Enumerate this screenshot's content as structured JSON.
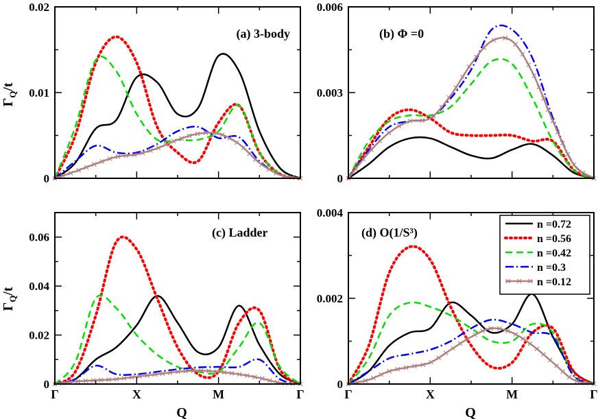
{
  "figure": {
    "xlabel": "Q",
    "ylabel": "Γ",
    "ylabel_sub": "Q",
    "ylabel_tail": "/t",
    "x_ticks": [
      "Γ",
      "X",
      "M",
      "Γ"
    ]
  },
  "legend": {
    "entries": [
      {
        "label": "n =0.72",
        "color": "#000000",
        "style": "solid",
        "marker": ""
      },
      {
        "label": "n =0.56",
        "color": "#ff0000",
        "style": "dotted",
        "marker": ""
      },
      {
        "label": "n =0.42",
        "color": "#00e000",
        "style": "dashed",
        "marker": ""
      },
      {
        "label": "n =0.3",
        "color": "#0000ff",
        "style": "dashdot",
        "marker": ""
      },
      {
        "label": "n =0.12",
        "color": "#b08080",
        "style": "solid",
        "marker": "x"
      }
    ]
  },
  "chart_data": [
    {
      "type": "line",
      "title": "(a) 3-body",
      "ylim": [
        0,
        0.02
      ],
      "y_ticks": [
        "0",
        "0.01",
        "0.02"
      ],
      "y_tick_values": [
        0,
        0.01,
        0.02
      ],
      "x": [
        0,
        0.25,
        0.5,
        0.75,
        1,
        1.25,
        1.5,
        1.75,
        2,
        2.25,
        2.5,
        2.75,
        3
      ],
      "series": [
        {
          "name": "n =0.72",
          "values": [
            0,
            0.0018,
            0.0058,
            0.0068,
            0.0118,
            0.0112,
            0.0075,
            0.0082,
            0.0143,
            0.0125,
            0.0055,
            0.0012,
            0
          ]
        },
        {
          "name": "n =0.56",
          "values": [
            0,
            0.005,
            0.0135,
            0.0165,
            0.0135,
            0.006,
            0.003,
            0.002,
            0.0065,
            0.0085,
            0.003,
            0.0005,
            0
          ]
        },
        {
          "name": "n =0.42",
          "values": [
            0,
            0.006,
            0.0138,
            0.0125,
            0.0075,
            0.0045,
            0.0045,
            0.0045,
            0.0055,
            0.0085,
            0.003,
            0.0005,
            0
          ]
        },
        {
          "name": "n =0.3",
          "values": [
            0,
            0.002,
            0.0038,
            0.003,
            0.003,
            0.004,
            0.0055,
            0.006,
            0.0047,
            0.0048,
            0.002,
            0.0004,
            0
          ]
        },
        {
          "name": "n =0.12",
          "values": [
            0,
            0.0008,
            0.0017,
            0.0025,
            0.0028,
            0.0035,
            0.0045,
            0.0052,
            0.0052,
            0.004,
            0.0018,
            0.0004,
            0
          ]
        }
      ]
    },
    {
      "type": "line",
      "title": "(b) Φ =0",
      "ylim": [
        0,
        0.006
      ],
      "y_ticks": [
        "0",
        "0.003",
        "0.006"
      ],
      "y_tick_values": [
        0,
        0.003,
        0.006
      ],
      "x": [
        0,
        0.25,
        0.5,
        0.75,
        1,
        1.25,
        1.5,
        1.75,
        2,
        2.25,
        2.5,
        2.75,
        3
      ],
      "series": [
        {
          "name": "n =0.72",
          "values": [
            0,
            0.0005,
            0.0011,
            0.0014,
            0.0014,
            0.0011,
            0.0008,
            0.0007,
            0.001,
            0.0012,
            0.0008,
            0.0002,
            0
          ]
        },
        {
          "name": "n =0.56",
          "values": [
            0,
            0.0011,
            0.0021,
            0.0024,
            0.0021,
            0.0016,
            0.0015,
            0.0015,
            0.0015,
            0.0013,
            0.0013,
            0.0003,
            0
          ]
        },
        {
          "name": "n =0.42",
          "values": [
            0,
            0.0013,
            0.002,
            0.0022,
            0.0022,
            0.0025,
            0.0033,
            0.0041,
            0.004,
            0.0028,
            0.0013,
            0.0003,
            0
          ]
        },
        {
          "name": "n =0.3",
          "values": [
            0,
            0.001,
            0.0018,
            0.002,
            0.0021,
            0.0028,
            0.0038,
            0.0052,
            0.0052,
            0.0042,
            0.0021,
            0.0005,
            0
          ]
        },
        {
          "name": "n =0.12",
          "values": [
            0,
            0.0009,
            0.0016,
            0.002,
            0.0021,
            0.0029,
            0.004,
            0.0048,
            0.0048,
            0.0037,
            0.002,
            0.0005,
            0
          ]
        }
      ]
    },
    {
      "type": "line",
      "title": "(c) Ladder",
      "ylim": [
        0,
        0.07
      ],
      "y_ticks": [
        "0",
        "0.02",
        "0.04",
        "0.06"
      ],
      "y_tick_values": [
        0,
        0.02,
        0.04,
        0.06
      ],
      "x": [
        0,
        0.25,
        0.5,
        0.75,
        1,
        1.25,
        1.5,
        1.75,
        2,
        2.25,
        2.5,
        2.75,
        3
      ],
      "series": [
        {
          "name": "n =0.72",
          "values": [
            0,
            0.002,
            0.01,
            0.015,
            0.024,
            0.036,
            0.025,
            0.013,
            0.015,
            0.032,
            0.016,
            0.004,
            0
          ]
        },
        {
          "name": "n =0.56",
          "values": [
            0,
            0.005,
            0.028,
            0.058,
            0.055,
            0.035,
            0.015,
            0.004,
            0.005,
            0.025,
            0.03,
            0.006,
            0
          ]
        },
        {
          "name": "n =0.42",
          "values": [
            0,
            0.009,
            0.035,
            0.031,
            0.02,
            0.012,
            0.007,
            0.005,
            0.005,
            0.015,
            0.025,
            0.007,
            0
          ]
        },
        {
          "name": "n =0.3",
          "values": [
            0,
            0.002,
            0.0075,
            0.004,
            0.004,
            0.005,
            0.006,
            0.0068,
            0.007,
            0.007,
            0.01,
            0.002,
            0
          ]
        },
        {
          "name": "n =0.12",
          "values": [
            0,
            0.001,
            0.0015,
            0.002,
            0.003,
            0.004,
            0.005,
            0.0055,
            0.005,
            0.004,
            0.0025,
            0.0005,
            0
          ]
        }
      ]
    },
    {
      "type": "line",
      "title": "(d) O(1/S³)",
      "ylim": [
        0,
        0.004
      ],
      "y_ticks": [
        "0",
        "0.002",
        "0.004"
      ],
      "y_tick_values": [
        0,
        0.002,
        0.004
      ],
      "x": [
        0,
        0.25,
        0.5,
        0.75,
        1,
        1.25,
        1.5,
        1.75,
        2,
        2.25,
        2.5,
        2.75,
        3
      ],
      "series": [
        {
          "name": "n =0.72",
          "values": [
            0,
            0.0003,
            0.0009,
            0.0012,
            0.0013,
            0.0019,
            0.0016,
            0.0012,
            0.0014,
            0.0021,
            0.0011,
            0.0003,
            0
          ]
        },
        {
          "name": "n =0.56",
          "values": [
            0,
            0.0009,
            0.0026,
            0.0032,
            0.0029,
            0.0018,
            0.0009,
            0.0004,
            0.0005,
            0.0012,
            0.0013,
            0.0003,
            0
          ]
        },
        {
          "name": "n =0.42",
          "values": [
            0,
            0.0006,
            0.0016,
            0.0019,
            0.0018,
            0.0016,
            0.0013,
            0.001,
            0.001,
            0.0014,
            0.0012,
            0.0002,
            0
          ]
        },
        {
          "name": "n =0.3",
          "values": [
            0,
            0.0003,
            0.0006,
            0.0007,
            0.0008,
            0.001,
            0.0013,
            0.0015,
            0.0014,
            0.0012,
            0.0011,
            0.0002,
            0
          ]
        },
        {
          "name": "n =0.12",
          "values": [
            0,
            0.0001,
            0.0003,
            0.0004,
            0.0005,
            0.0008,
            0.0011,
            0.0013,
            0.0012,
            0.0009,
            0.0005,
            0.0001,
            0
          ]
        }
      ]
    }
  ]
}
